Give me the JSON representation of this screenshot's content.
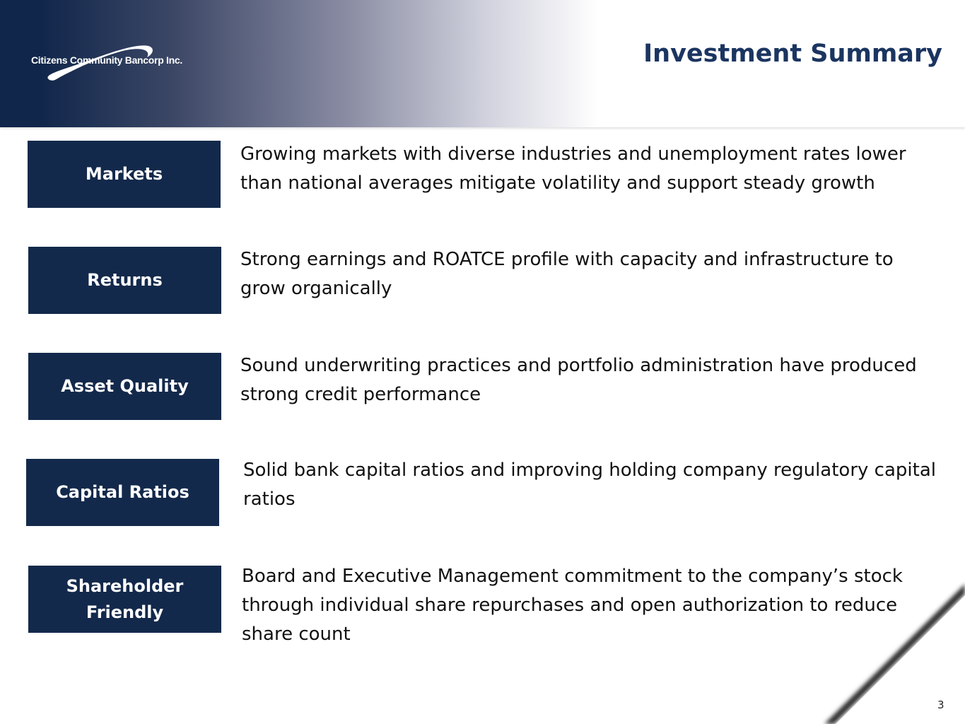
{
  "header": {
    "logo_text": "Citizens Community Bancorp Inc.",
    "title": "Investment Summary"
  },
  "rows": [
    {
      "label": "Markets",
      "text": "Growing markets with diverse industries and unemployment rates lower than national averages mitigate volatility and support steady growth"
    },
    {
      "label": "Returns",
      "text": "Strong earnings and ROATCE profile with capacity and infrastructure to grow organically"
    },
    {
      "label": "Asset Quality",
      "text": "Sound underwriting practices and portfolio administration have produced strong credit performance"
    },
    {
      "label": "Capital Ratios",
      "text": "Solid bank capital ratios and improving holding company regulatory capital ratios"
    },
    {
      "label": "Shareholder Friendly",
      "text": "Board and Executive Management commitment to the company’s stock through individual share repurchases and open authorization to reduce share count"
    }
  ],
  "page_number": "3",
  "colors": {
    "navy": "#13294b",
    "title": "#1b3561"
  }
}
